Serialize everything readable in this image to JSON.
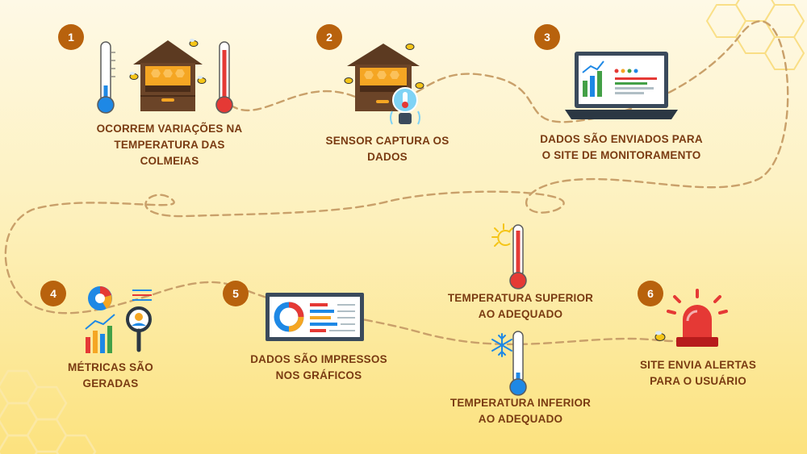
{
  "steps": [
    {
      "number": "1",
      "label": "OCORREM VARIAÇÕES NA\nTEMPERATURA DAS\nCOLMEIAS"
    },
    {
      "number": "2",
      "label": "SENSOR CAPTURA OS\nDADOS"
    },
    {
      "number": "3",
      "label": "DADOS SÃO ENVIADOS PARA\nO SITE DE MONITORAMENTO"
    },
    {
      "number": "4",
      "label": "MÉTRICAS SÃO\nGERADAS"
    },
    {
      "number": "5",
      "label": "DADOS SÃO IMPRESSOS\nNOS GRÁFICOS"
    },
    {
      "number": "6",
      "label": "SITE ENVIA ALERTAS\nPARA O USUÁRIO"
    }
  ],
  "conditions": {
    "high": "TEMPERATURA SUPERIOR\nAO ADEQUADO",
    "low": "TEMPERATURA INFERIOR\nAO ADEQUADO"
  },
  "colors": {
    "badge": "#b8620d",
    "text": "#7a3b12",
    "path": "#c9a06a",
    "hive": "#5c3a21",
    "honey": "#f5a623",
    "thermo_hot": "#e53935",
    "thermo_cold": "#1e88e5",
    "siren": "#e53935"
  }
}
